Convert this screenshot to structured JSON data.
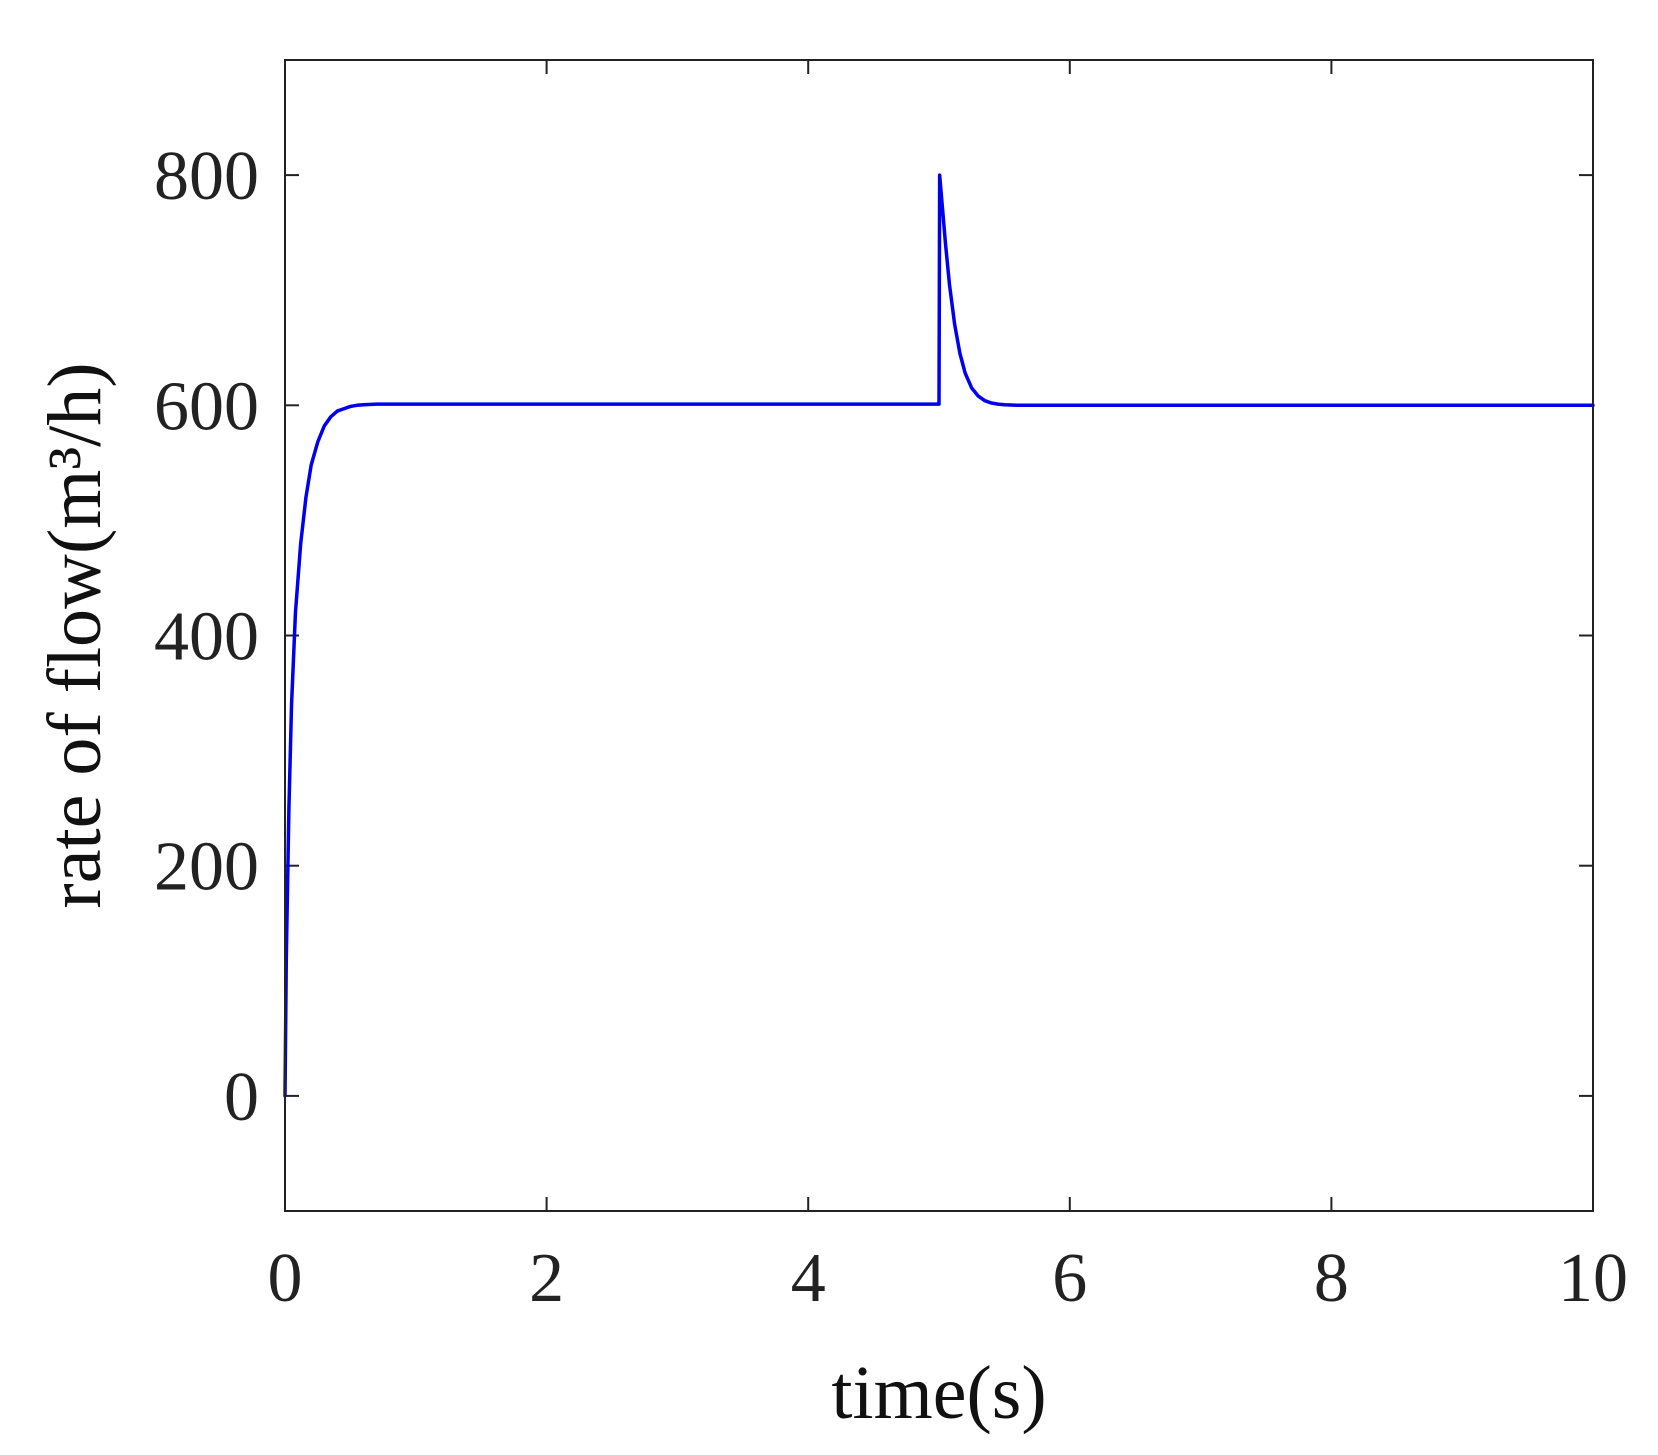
{
  "chart_data": {
    "type": "line",
    "title": "",
    "xlabel": "time(s)",
    "ylabel": "rate of flow(m³/h)",
    "xlim": [
      0,
      10
    ],
    "ylim": [
      -100,
      900
    ],
    "xticks": [
      0,
      2,
      4,
      6,
      8,
      10
    ],
    "yticks": [
      0,
      200,
      400,
      600,
      800
    ],
    "grid": false,
    "legend": "none",
    "series": [
      {
        "color": "#0000ee",
        "x": [
          0,
          0.01,
          0.03,
          0.05,
          0.08,
          0.12,
          0.16,
          0.2,
          0.25,
          0.3,
          0.35,
          0.4,
          0.45,
          0.5,
          0.55,
          0.6,
          0.7,
          0.8,
          1.0,
          1.5,
          2,
          3,
          4,
          4.99,
          5.0,
          5.005,
          5.02,
          5.05,
          5.08,
          5.12,
          5.16,
          5.2,
          5.25,
          5.3,
          5.35,
          5.4,
          5.45,
          5.5,
          5.6,
          5.7,
          5.8,
          6,
          7,
          8,
          9,
          10
        ],
        "y": [
          0,
          120,
          250,
          340,
          420,
          480,
          520,
          548,
          568,
          582,
          590,
          595,
          597,
          599,
          600,
          600.5,
          601,
          601,
          601,
          601,
          601,
          601,
          601,
          601,
          601,
          800,
          780,
          740,
          705,
          670,
          645,
          628,
          615,
          608,
          604,
          602,
          601,
          600.5,
          600,
          600,
          600,
          600,
          600,
          600,
          600,
          600
        ]
      }
    ]
  }
}
